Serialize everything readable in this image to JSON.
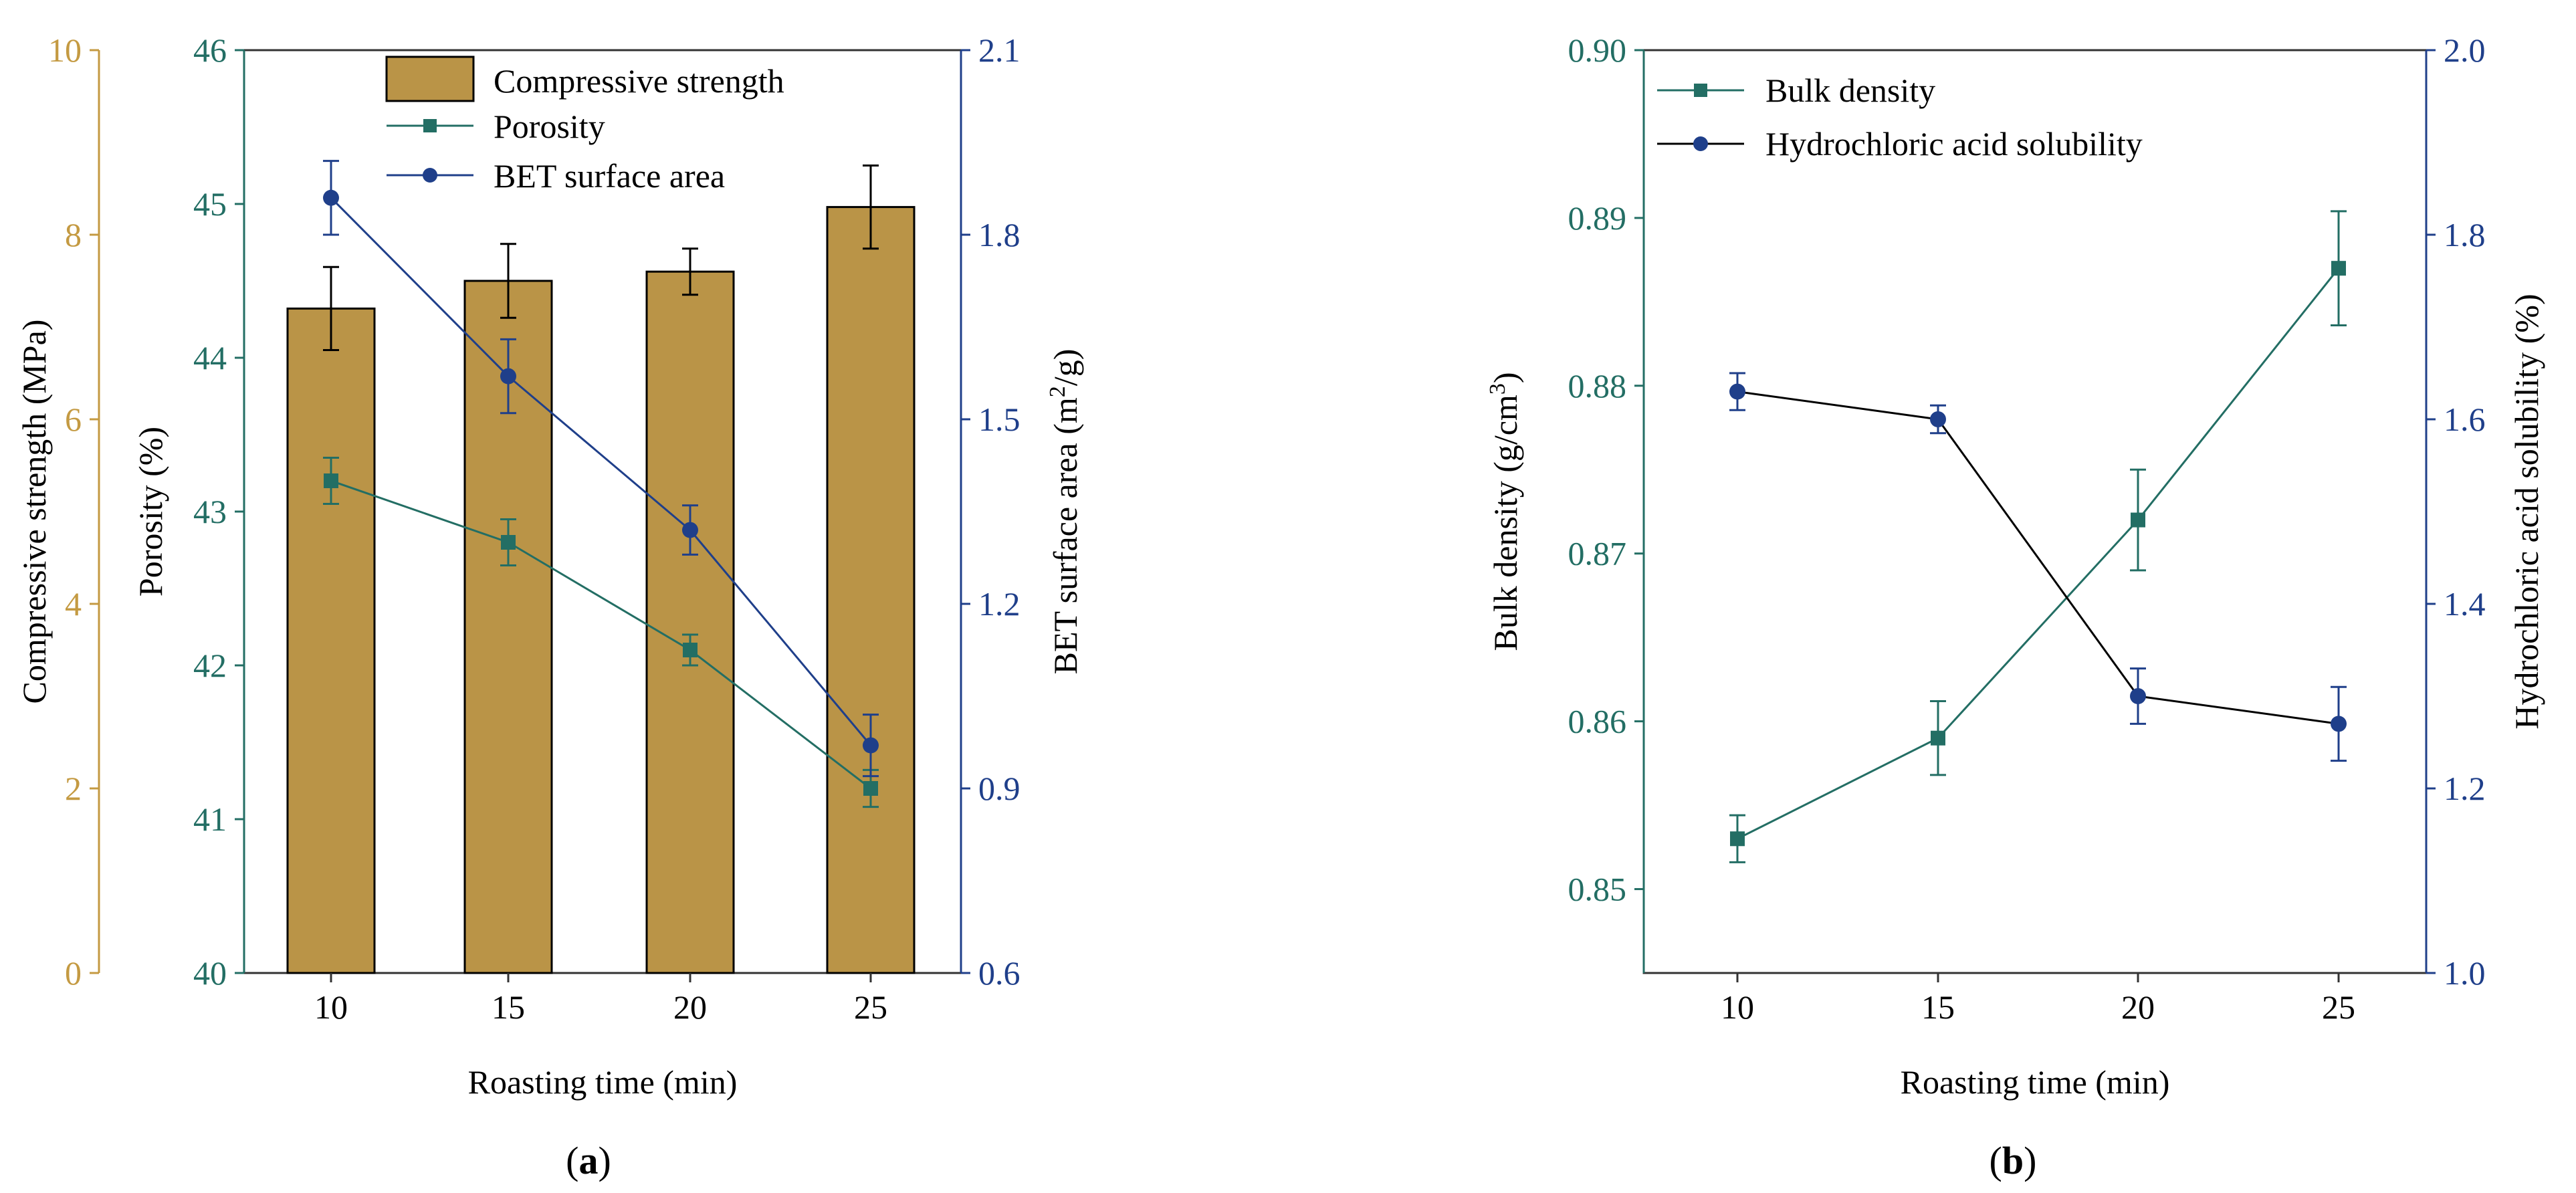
{
  "chart_data": [
    {
      "type": "bar+line",
      "panel_label": "(a)",
      "panel_letter": "a",
      "xlabel": "Roasting time (min)",
      "categories": [
        "10",
        "15",
        "20",
        "25"
      ],
      "axes": {
        "compressive": {
          "label": "Compressive strength (MPa)",
          "range": [
            0,
            10
          ],
          "ticks": [
            "0",
            "2",
            "4",
            "6",
            "8",
            "10"
          ],
          "color": "#C49A42"
        },
        "porosity": {
          "label": "Porosity (%)",
          "range": [
            40,
            46
          ],
          "ticks": [
            "40",
            "41",
            "42",
            "43",
            "44",
            "45",
            "46"
          ],
          "color": "#236E64"
        },
        "bet": {
          "label_main": "BET surface area (m",
          "label_sup": "2",
          "label_end": "/g)",
          "range": [
            0.6,
            2.1
          ],
          "ticks": [
            "0.6",
            "0.9",
            "1.2",
            "1.5",
            "1.8",
            "2.1"
          ],
          "color": "#1F3F8A"
        }
      },
      "series": [
        {
          "name": "Compressive strength",
          "kind": "bar",
          "axis": "compressive",
          "values": [
            7.2,
            7.5,
            7.6,
            8.3
          ],
          "errors": [
            0.45,
            0.4,
            0.25,
            0.45
          ],
          "color": "#BA9447"
        },
        {
          "name": "Porosity",
          "kind": "line",
          "axis": "porosity",
          "marker": "square",
          "values": [
            43.2,
            42.8,
            42.1,
            41.2
          ],
          "errors": [
            0.15,
            0.15,
            0.1,
            0.12
          ],
          "color": "#236E64"
        },
        {
          "name": "BET surface area",
          "kind": "line",
          "axis": "bet",
          "marker": "circle",
          "values": [
            1.86,
            1.57,
            1.32,
            0.97
          ],
          "errors": [
            0.06,
            0.06,
            0.04,
            0.05
          ],
          "color": "#1F3F8A"
        }
      ]
    },
    {
      "type": "line",
      "panel_label": "(b)",
      "panel_letter": "b",
      "xlabel": "Roasting time (min)",
      "categories": [
        "10",
        "15",
        "20",
        "25"
      ],
      "axes": {
        "density": {
          "label_main": "Bulk density (g/cm",
          "label_sup": "3",
          "label_end": ")",
          "range": [
            0.845,
            0.9
          ],
          "ticks": [
            "0.85",
            "0.86",
            "0.87",
            "0.88",
            "0.89",
            "0.90"
          ],
          "color": "#236E64"
        },
        "hcl": {
          "label": "Hydrochloric acid solubility (%)",
          "range": [
            1.0,
            2.0
          ],
          "ticks": [
            "1.0",
            "1.2",
            "1.4",
            "1.6",
            "1.8",
            "2.0"
          ],
          "color": "#1F3F8A"
        }
      },
      "series": [
        {
          "name": "Bulk density",
          "kind": "line",
          "axis": "density",
          "marker": "square",
          "values": [
            0.853,
            0.859,
            0.872,
            0.887
          ],
          "errors": [
            0.0014,
            0.0022,
            0.003,
            0.0034
          ],
          "color": "#236E64"
        },
        {
          "name": "Hydrochloric acid solubility",
          "kind": "line",
          "axis": "hcl",
          "marker": "circle",
          "values": [
            1.63,
            1.6,
            1.3,
            1.27
          ],
          "errors": [
            0.02,
            0.015,
            0.03,
            0.04
          ],
          "color": "#1F3F8A"
        }
      ]
    }
  ]
}
